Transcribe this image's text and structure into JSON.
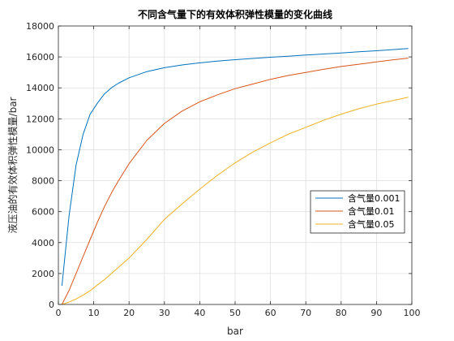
{
  "chart_data": {
    "type": "line",
    "title": "不同含气量下的有效体积弹性模量的变化曲线",
    "xlabel": "bar",
    "ylabel": "液压油的有效体积弹性模量/bar",
    "xlim": [
      0,
      100
    ],
    "ylim": [
      0,
      18000
    ],
    "xticks": [
      "0",
      "10",
      "20",
      "30",
      "40",
      "50",
      "60",
      "70",
      "80",
      "90",
      "100"
    ],
    "yticks": [
      "0",
      "2000",
      "4000",
      "6000",
      "8000",
      "10000",
      "12000",
      "14000",
      "16000",
      "18000"
    ],
    "grid": true,
    "legend_position": "right",
    "x": [
      1,
      3,
      5,
      7,
      9,
      11,
      13,
      15,
      17,
      20,
      25,
      30,
      35,
      40,
      45,
      50,
      55,
      60,
      65,
      70,
      75,
      80,
      85,
      90,
      95,
      99
    ],
    "series": [
      {
        "name": "含气量0.001",
        "color": "#0072BD",
        "values": [
          1200,
          5700,
          9000,
          11000,
          12300,
          13000,
          13600,
          14000,
          14300,
          14650,
          15050,
          15300,
          15480,
          15620,
          15730,
          15820,
          15900,
          15980,
          16050,
          16120,
          16190,
          16260,
          16330,
          16400,
          16480,
          16540
        ]
      },
      {
        "name": "含气量0.01",
        "color": "#D95319",
        "values": [
          0,
          900,
          2000,
          3100,
          4200,
          5300,
          6300,
          7200,
          8000,
          9100,
          10600,
          11700,
          12500,
          13100,
          13550,
          13950,
          14250,
          14550,
          14800,
          15000,
          15200,
          15380,
          15530,
          15680,
          15820,
          15920
        ]
      },
      {
        "name": "含气量0.05",
        "color": "#EDB120",
        "values": [
          0,
          150,
          350,
          600,
          900,
          1250,
          1600,
          2000,
          2400,
          3000,
          4200,
          5500,
          6500,
          7450,
          8350,
          9150,
          9850,
          10450,
          11000,
          11450,
          11900,
          12300,
          12650,
          12950,
          13200,
          13400
        ]
      }
    ]
  }
}
